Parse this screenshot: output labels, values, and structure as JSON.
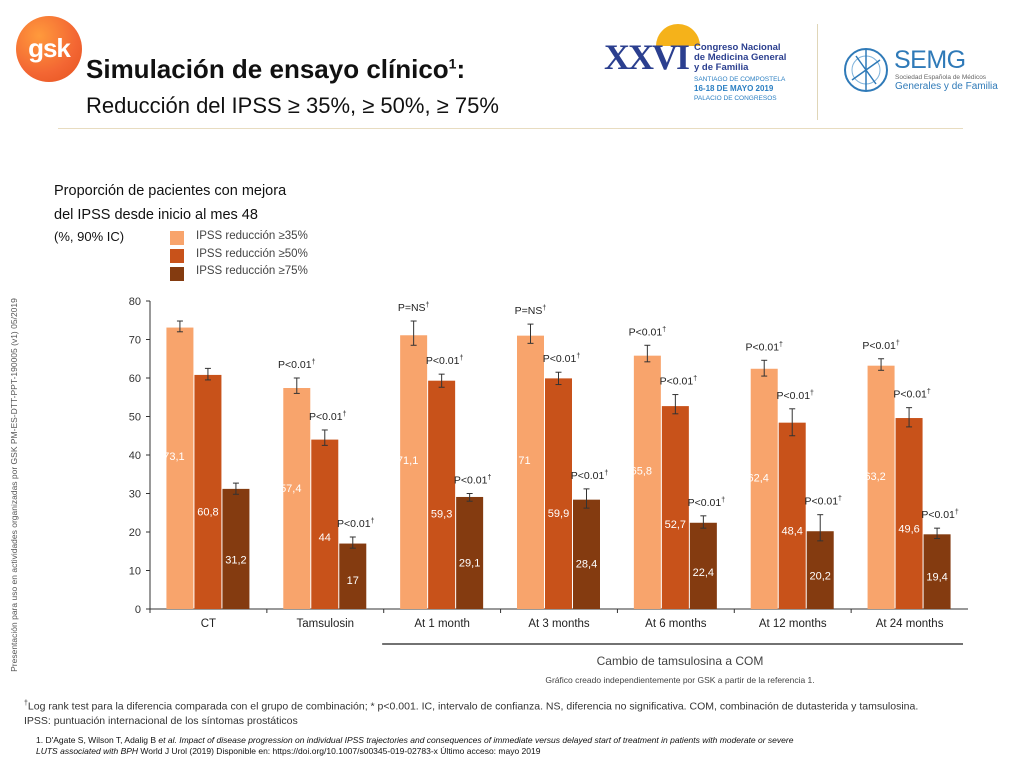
{
  "header": {
    "logo_text": "gsk",
    "title": "Simulación de ensayo clínico",
    "title_sup": "1",
    "title_suffix": ":",
    "subtitle": "Reducción del IPSS ≥ 35%, ≥ 50%, ≥ 75%"
  },
  "congress_logo": {
    "roman": "XXVI",
    "name_lines": [
      "Congreso Nacional",
      "de Medicina General",
      "y de Familia"
    ],
    "place": "SANTIAGO DE COMPOSTELA",
    "dates": "16-18 DE MAYO 2019",
    "venue": "PALACIO DE CONGRESOS"
  },
  "semg_logo": {
    "name": "SEMG",
    "society_line1": "Sociedad Española de Médicos",
    "society_line2": "Generales y de Familia"
  },
  "side_note": "Presentación para uso en actividades organizadas por GSK  PM-ES-DTT-PPT-190005 (v1) 05/2019",
  "chart_caption": [
    "Proporción de pacientes con mejora",
    "del IPSS desde inicio al mes 48",
    "(%, 90% IC)"
  ],
  "colors": {
    "s35": "#f8a46c",
    "s50": "#c8521a",
    "s75": "#843b10",
    "axis": "#333333"
  },
  "chart_data": {
    "type": "bar",
    "categories": [
      "CT",
      "Tamsulosin",
      "At 1 month",
      "At 3 months",
      "At 6 months",
      "At 12 months",
      "At 24 months"
    ],
    "ylim": [
      0,
      80
    ],
    "yticks": [
      0,
      10,
      20,
      30,
      40,
      50,
      60,
      70,
      80
    ],
    "series": [
      {
        "name": "IPSS reducción ≥35%",
        "values": [
          73.1,
          57.4,
          71.1,
          71,
          65.8,
          62.4,
          63.2
        ],
        "labels": [
          "73,1",
          "57,4",
          "71,1",
          "71",
          "65,8",
          "62,4",
          "63,2"
        ],
        "err_low": [
          72.0,
          56.0,
          68.5,
          69.0,
          64.2,
          60.5,
          62.0
        ],
        "err_high": [
          74.8,
          60.0,
          74.8,
          74.0,
          68.5,
          64.6,
          65.0
        ],
        "pvalues": [
          "",
          "P<0.01†",
          "P=NS†",
          "P=NS†",
          "P<0.01†",
          "P<0.01†",
          "P<0.01†"
        ]
      },
      {
        "name": "IPSS reducción ≥50%",
        "values": [
          60.8,
          44,
          59.3,
          59.9,
          52.7,
          48.4,
          49.6
        ],
        "labels": [
          "60,8",
          "44",
          "59,3",
          "59,9",
          "52,7",
          "48,4",
          "49,6"
        ],
        "err_low": [
          59.5,
          42.5,
          57.6,
          58.3,
          50.7,
          45.0,
          47.3
        ],
        "err_high": [
          62.5,
          46.5,
          61.0,
          61.5,
          55.7,
          52.0,
          52.3
        ],
        "pvalues": [
          "",
          "P<0.01†",
          "P<0.01†",
          "P<0.01†",
          "P<0.01†",
          "P<0.01†",
          "P<0.01†"
        ]
      },
      {
        "name": "IPSS reducción ≥75%",
        "values": [
          31.2,
          17,
          29.1,
          28.4,
          22.4,
          20.2,
          19.4
        ],
        "labels": [
          "31,2",
          "17",
          "29,1",
          "28,4",
          "22,4",
          "20,2",
          "19,4"
        ],
        "err_low": [
          29.8,
          15.8,
          28.0,
          26.2,
          21.0,
          17.7,
          18.3
        ],
        "err_high": [
          32.7,
          18.7,
          30.0,
          31.2,
          24.2,
          24.5,
          21.0
        ],
        "pvalues": [
          "",
          "P<0.01†",
          "P<0.01†",
          "P<0.01†",
          "P<0.01†",
          "P<0.01†",
          "P<0.01†"
        ]
      }
    ],
    "group_label": "Cambio de tamsulosina a COM",
    "note": "Gráfico creado independientemente por GSK a partir de la referencia 1."
  },
  "footnote": {
    "text1": "Log rank test para la diferencia comparada con el grupo de combinación; * p<0.001. IC, intervalo de confianza. NS, diferencia no significativa. COM, combinación de dutasterida y tamsulosina.",
    "text2": "IPSS: puntuación internacional de los síntomas prostáticos",
    "mark": "†"
  },
  "reference": {
    "line1a": "1. D'Agate S, Wilson T, Adalig B ",
    "line1b": "et al. Impact of disease progression on individual IPSS trajectories and consequences of immediate versus delayed start of treatment in patients with moderate or severe",
    "line2a": "LUTS associated with BPH",
    "line2b": "  World J Urol (2019) Disponible en: https://doi.org/10.1007/s00345-019-02783-x Último acceso: mayo 2019"
  }
}
